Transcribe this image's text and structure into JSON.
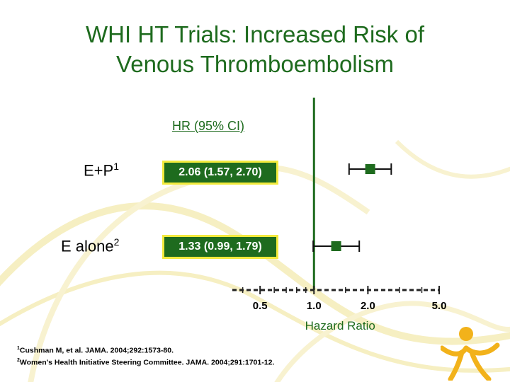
{
  "title_line1": "WHI HT Trials: Increased Risk of",
  "title_line2": "Venous Thromboembolism",
  "column_header": "HR (95% CI)",
  "rows": [
    {
      "label": "E+P",
      "sup": "1",
      "hr_text": "2.06 (1.57, 2.70)"
    },
    {
      "label": "E alone",
      "sup": "2",
      "hr_text": "1.33 (0.99, 1.79)"
    }
  ],
  "footnotes": [
    {
      "num": "1",
      "text": "Cushman M, et al. JAMA. 2004;292:1573-80."
    },
    {
      "num": "2",
      "text": "Women's Health Initiative Steering Committee. JAMA. 2004;291:1701-12."
    }
  ],
  "colors": {
    "green": "#1e6b1e",
    "box_border": "#f2ea3e",
    "background_swirl": "#f6efc2"
  },
  "chart_data": {
    "type": "forest",
    "xlabel": "Hazard Ratio",
    "xscale": "log",
    "xlim": [
      0.35,
      5.0
    ],
    "reference_line": 1.0,
    "ticks": [
      {
        "value": 0.5,
        "label": "0.5"
      },
      {
        "value": 1.0,
        "label": "1.0"
      },
      {
        "value": 2.0,
        "label": "2.0"
      },
      {
        "value": 5.0,
        "label": "5.0"
      }
    ],
    "series": [
      {
        "name": "E+P",
        "hr": 2.06,
        "ci_low": 1.57,
        "ci_high": 2.7
      },
      {
        "name": "E alone",
        "hr": 1.33,
        "ci_low": 0.99,
        "ci_high": 1.79
      }
    ]
  }
}
